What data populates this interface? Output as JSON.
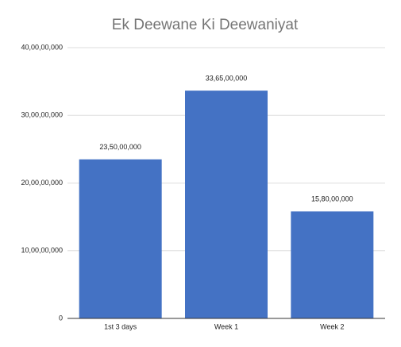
{
  "chart_data": {
    "type": "bar",
    "title": "Ek Deewane Ki Deewaniyat",
    "categories": [
      "1st 3 days",
      "Week 1",
      "Week 2"
    ],
    "values": [
      235000000,
      336500000,
      158000000
    ],
    "value_labels": [
      "23,50,00,000",
      "33,65,00,000",
      "15,80,00,000"
    ],
    "color": "#4472c4",
    "ylim": [
      0,
      400000000
    ],
    "yticks": [
      0,
      {
        "value": 100000000,
        "label": "10,00,00,000"
      },
      {
        "value": 200000000,
        "label": "20,00,00,000"
      },
      {
        "value": 300000000,
        "label": "30,00,00,000"
      },
      {
        "value": 400000000,
        "label": "40,00,00,000"
      }
    ],
    "grid": true
  }
}
